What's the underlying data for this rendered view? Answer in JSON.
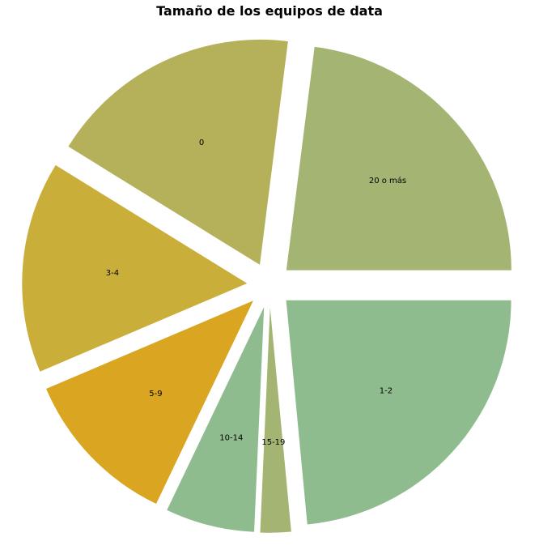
{
  "chart_data": {
    "type": "pie",
    "title": "Tamaño de los equipos de data",
    "slices": [
      {
        "label": "1-2",
        "value": 23.5,
        "color": "#8fbc8f"
      },
      {
        "label": "15-19",
        "value": 2.2,
        "color": "#a3b473"
      },
      {
        "label": "10-14",
        "value": 6.4,
        "color": "#8fbc8f"
      },
      {
        "label": "5-9",
        "value": 11.5,
        "color": "#daa520"
      },
      {
        "label": "3-4",
        "value": 15.2,
        "color": "#c9ae3a"
      },
      {
        "label": "0",
        "value": 18.2,
        "color": "#b5b05a"
      },
      {
        "label": "20 o más",
        "value": 23.0,
        "color": "#a3b473"
      }
    ],
    "start_angle_deg": 0,
    "direction": "clockwise"
  }
}
